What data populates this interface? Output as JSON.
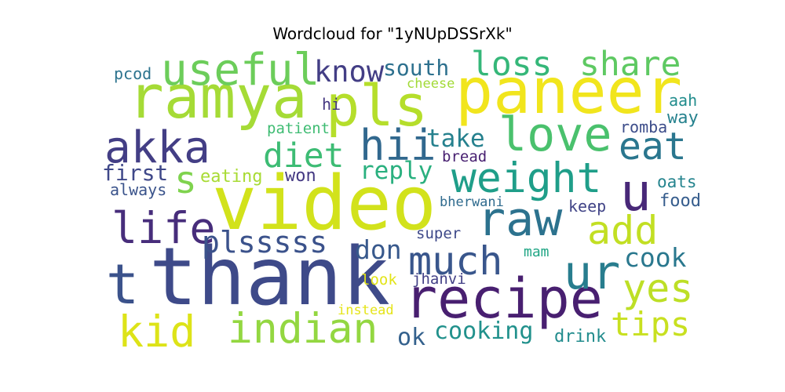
{
  "chart_data": {
    "type": "wordcloud",
    "title": "Wordcloud for \"1yNUpDSSrXk\"",
    "words": [
      {
        "text": "video",
        "color": "#d2e21b"
      },
      {
        "text": "thank",
        "color": "#3e4a89"
      },
      {
        "text": "ramya",
        "color": "#a5db36"
      },
      {
        "text": "paneer",
        "color": "#f1e51d"
      },
      {
        "text": "pls",
        "color": "#b5de2b"
      },
      {
        "text": "recipe",
        "color": "#481f70"
      },
      {
        "text": "useful",
        "color": "#6ccd5a"
      },
      {
        "text": "love",
        "color": "#4ac16d"
      },
      {
        "text": "weight",
        "color": "#1f9e89"
      },
      {
        "text": "raw",
        "color": "#2c728e"
      },
      {
        "text": "akka",
        "color": "#433e85"
      },
      {
        "text": "hii",
        "color": "#31688e"
      },
      {
        "text": "u",
        "color": "#482878"
      },
      {
        "text": "ur",
        "color": "#287d8e"
      },
      {
        "text": "much",
        "color": "#39568c"
      },
      {
        "text": "indian",
        "color": "#93d741"
      },
      {
        "text": "kid",
        "color": "#dde318"
      },
      {
        "text": "life",
        "color": "#472d7b"
      },
      {
        "text": "t",
        "color": "#3b528b"
      },
      {
        "text": "add",
        "color": "#c2df23"
      },
      {
        "text": "yes",
        "color": "#bddf26"
      },
      {
        "text": "eat",
        "color": "#2a768e"
      },
      {
        "text": "tips",
        "color": "#c8e020"
      },
      {
        "text": "loss",
        "color": "#35b779"
      },
      {
        "text": "share",
        "color": "#5ec962"
      },
      {
        "text": "diet",
        "color": "#3dbc74"
      },
      {
        "text": "s",
        "color": "#7fd34e"
      },
      {
        "text": "know",
        "color": "#433e85"
      },
      {
        "text": "plsssss",
        "color": "#3b528b"
      },
      {
        "text": "cook",
        "color": "#2a788e"
      },
      {
        "text": "don",
        "color": "#38598c"
      },
      {
        "text": "reply",
        "color": "#2ab07f"
      },
      {
        "text": "take",
        "color": "#26818e"
      },
      {
        "text": "cooking",
        "color": "#21918c"
      },
      {
        "text": "south",
        "color": "#2d708e"
      },
      {
        "text": "ok",
        "color": "#34618d"
      },
      {
        "text": "first",
        "color": "#3f4889"
      },
      {
        "text": "eating",
        "color": "#a8db34"
      },
      {
        "text": "won",
        "color": "#443983"
      },
      {
        "text": "always",
        "color": "#3a538b"
      },
      {
        "text": "pcod",
        "color": "#2c738e"
      },
      {
        "text": "cheese",
        "color": "#a2da37"
      },
      {
        "text": "hi",
        "color": "#453781"
      },
      {
        "text": "patient",
        "color": "#3fbc73"
      },
      {
        "text": "bread",
        "color": "#482071"
      },
      {
        "text": "aah",
        "color": "#228d8d"
      },
      {
        "text": "way",
        "color": "#26828e"
      },
      {
        "text": "romba",
        "color": "#3d4d8a"
      },
      {
        "text": "oats",
        "color": "#25848e"
      },
      {
        "text": "food",
        "color": "#365d8d"
      },
      {
        "text": "bherwani",
        "color": "#2f6b8e"
      },
      {
        "text": "keep",
        "color": "#414487"
      },
      {
        "text": "super",
        "color": "#3e4989"
      },
      {
        "text": "mam",
        "color": "#21a685"
      },
      {
        "text": "look",
        "color": "#e2e418"
      },
      {
        "text": "jhanvi",
        "color": "#424086"
      },
      {
        "text": "instead",
        "color": "#e5e419"
      },
      {
        "text": "drink",
        "color": "#228c8d"
      }
    ]
  }
}
